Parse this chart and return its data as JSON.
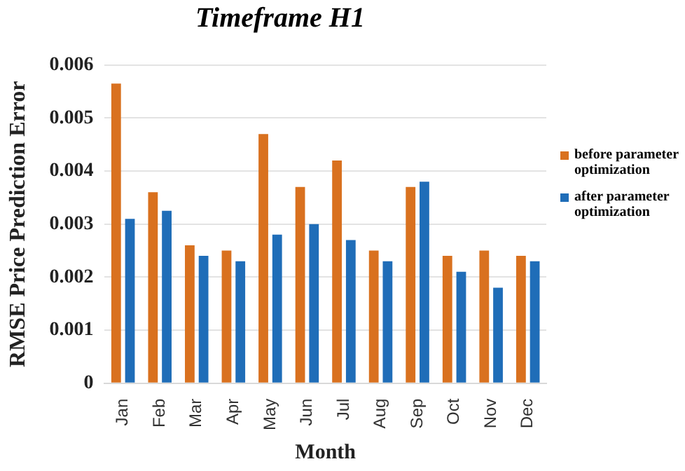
{
  "chart_data": {
    "type": "bar",
    "title": "Timeframe H1",
    "xlabel": "Month",
    "ylabel": "RMSE Price Prediction Error",
    "categories": [
      "Jan",
      "Feb",
      "Mar",
      "Apr",
      "May",
      "Jun",
      "Jul",
      "Aug",
      "Sep",
      "Oct",
      "Nov",
      "Dec"
    ],
    "series": [
      {
        "name": "before parameter optimization",
        "color": "#d9711f",
        "values": [
          0.00565,
          0.0036,
          0.0026,
          0.0025,
          0.0047,
          0.0037,
          0.0042,
          0.0025,
          0.0037,
          0.0024,
          0.0025,
          0.0024
        ]
      },
      {
        "name": "after parameter optimization",
        "color": "#1f6db8",
        "values": [
          0.0031,
          0.00325,
          0.0024,
          0.0023,
          0.0028,
          0.003,
          0.0027,
          0.0023,
          0.0038,
          0.0021,
          0.0018,
          0.0023
        ]
      }
    ],
    "ylim": [
      0,
      0.006
    ],
    "yticks": [
      0,
      0.001,
      0.002,
      0.003,
      0.004,
      0.005,
      0.006
    ],
    "grid": "y",
    "legend": "right"
  }
}
